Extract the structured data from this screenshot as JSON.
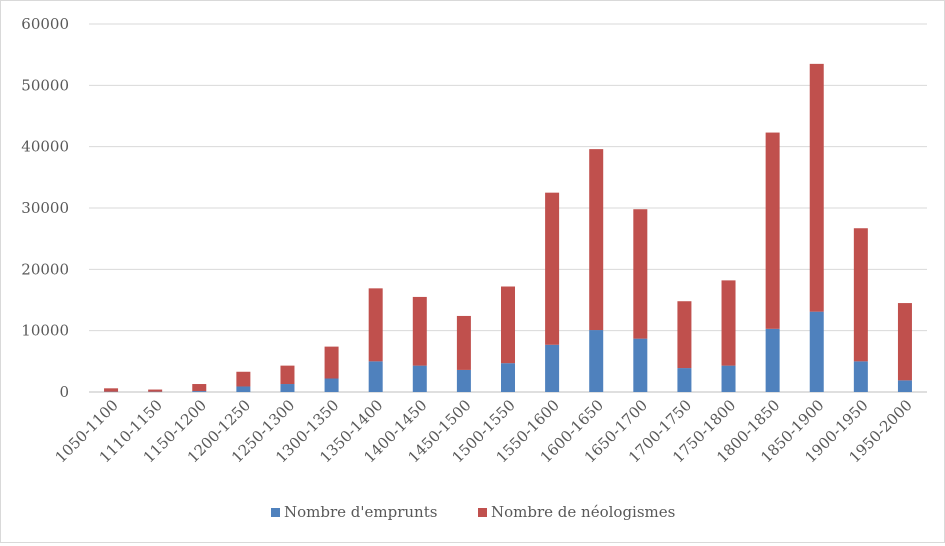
{
  "chart_data": {
    "type": "bar",
    "stacked": true,
    "categories": [
      "1050-1100",
      "1110-1150",
      "1150-1200",
      "1200-1250",
      "1250-1300",
      "1300-1350",
      "1350-1400",
      "1400-1450",
      "1450-1500",
      "1500-1550",
      "1550-1600",
      "1600-1650",
      "1650-1700",
      "1700-1750",
      "1750-1800",
      "1800-1850",
      "1850-1900",
      "1900-1950",
      "1950-2000"
    ],
    "series": [
      {
        "name": "Nombre d'emprunts",
        "color": "#4f81bd",
        "values": [
          50,
          50,
          150,
          900,
          1300,
          2200,
          5000,
          4300,
          3600,
          4700,
          7700,
          10100,
          8700,
          3900,
          4300,
          10300,
          13100,
          5000,
          1900
        ]
      },
      {
        "name": "Nombre de néologismes",
        "color": "#c0504d",
        "values": [
          550,
          350,
          1150,
          2400,
          3000,
          5200,
          11900,
          11200,
          8800,
          12500,
          24800,
          29500,
          21100,
          10900,
          13900,
          32000,
          40400,
          21700,
          12600
        ]
      }
    ],
    "ylim": [
      0,
      60000
    ],
    "yticks": [
      0,
      10000,
      20000,
      30000,
      40000,
      50000,
      60000
    ],
    "grid": true,
    "legend": "bottom",
    "title": "",
    "xlabel": "",
    "ylabel": ""
  }
}
